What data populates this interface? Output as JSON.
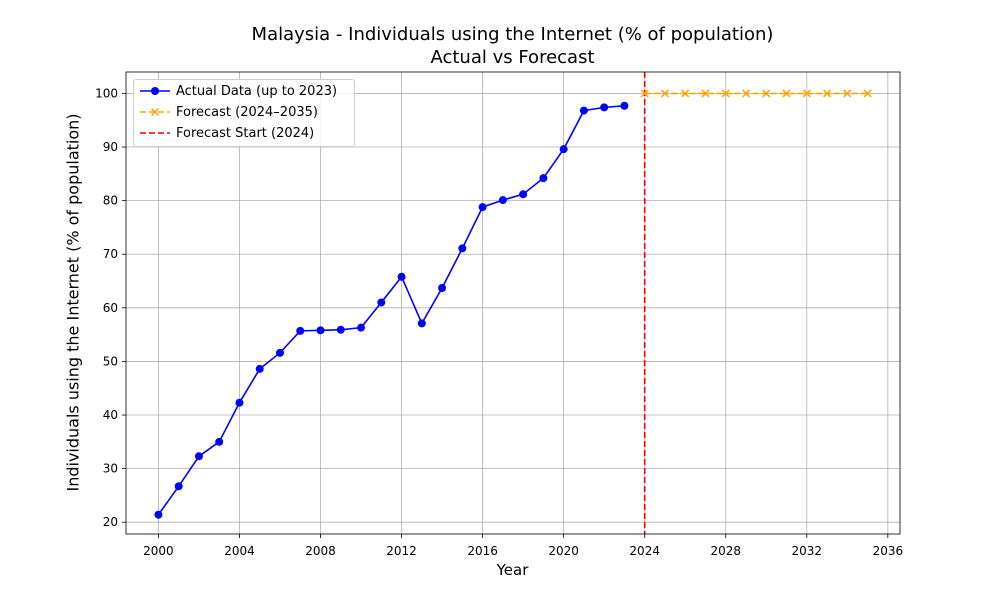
{
  "chart_data": {
    "type": "line",
    "title": "Malaysia - Individuals using the Internet (% of population)",
    "subtitle": "Actual vs Forecast",
    "xlabel": "Year",
    "ylabel": "Individuals using the Internet (% of population)",
    "xlim": [
      1998.4,
      2036.6
    ],
    "ylim": [
      17.8,
      104.0
    ],
    "xticks": [
      2000,
      2004,
      2008,
      2012,
      2016,
      2020,
      2024,
      2028,
      2032,
      2036
    ],
    "yticks": [
      20,
      30,
      40,
      50,
      60,
      70,
      80,
      90,
      100
    ],
    "grid": true,
    "legend_position": "top-left",
    "series": [
      {
        "name": "Actual Data (up to 2023)",
        "color": "#0000ff",
        "style": "solid",
        "marker": "circle",
        "x": [
          2000,
          2001,
          2002,
          2003,
          2004,
          2005,
          2006,
          2007,
          2008,
          2009,
          2010,
          2011,
          2012,
          2013,
          2014,
          2015,
          2016,
          2017,
          2018,
          2019,
          2020,
          2021,
          2022,
          2023
        ],
        "y": [
          21.4,
          26.7,
          32.3,
          35.0,
          42.3,
          48.6,
          51.6,
          55.7,
          55.8,
          55.9,
          56.3,
          61.0,
          65.8,
          57.1,
          63.7,
          71.1,
          78.8,
          80.1,
          81.2,
          84.2,
          89.6,
          96.8,
          97.4,
          97.7
        ]
      },
      {
        "name": "Forecast (2024–2035)",
        "color": "#ffa500",
        "style": "dashed",
        "marker": "x",
        "x": [
          2024,
          2025,
          2026,
          2027,
          2028,
          2029,
          2030,
          2031,
          2032,
          2033,
          2034,
          2035
        ],
        "y": [
          100,
          100,
          100,
          100,
          100,
          100,
          100,
          100,
          100,
          100,
          100,
          100
        ]
      }
    ],
    "vline": {
      "name": "Forecast Start (2024)",
      "x": 2024,
      "color": "#ff0000",
      "style": "dashed"
    }
  }
}
